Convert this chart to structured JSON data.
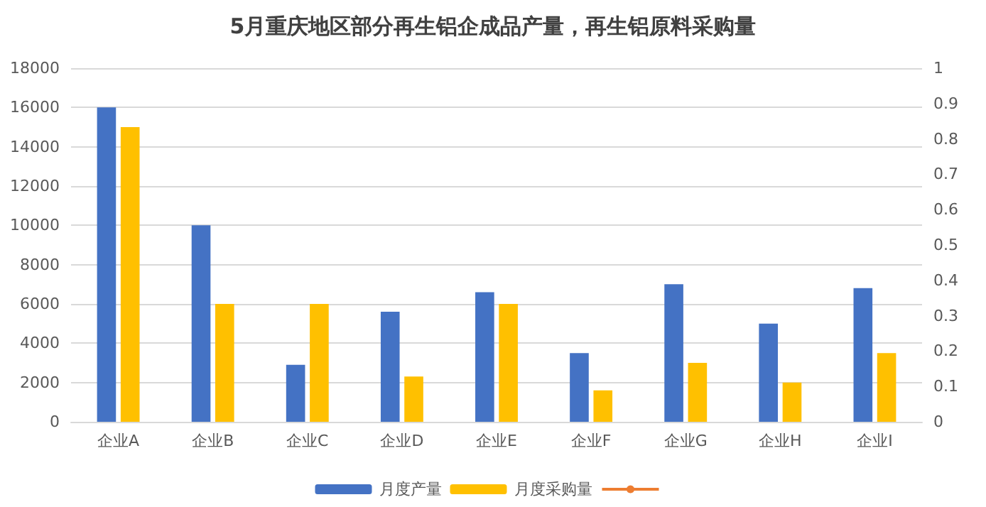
{
  "chart_data": {
    "type": "bar",
    "title": "5月重庆地区部分再生铝企成品产量，再生铝原料采购量",
    "categories": [
      "企业A",
      "企业B",
      "企业C",
      "企业D",
      "企业E",
      "企业F",
      "企业G",
      "企业H",
      "企业I"
    ],
    "series": [
      {
        "name": "月度产量",
        "color": "#4472c4",
        "values": [
          16000,
          10000,
          2900,
          5600,
          6600,
          3500,
          7000,
          5000,
          6800
        ]
      },
      {
        "name": "月度采购量",
        "color": "#ffc000",
        "values": [
          15000,
          6000,
          6000,
          2300,
          6000,
          1600,
          3000,
          2000,
          3500
        ]
      },
      {
        "type": "line",
        "axis": "y2",
        "color": "#ed7d31",
        "values": [
          null,
          null,
          null,
          null,
          null,
          null,
          null,
          null,
          null
        ]
      }
    ],
    "ylim": [
      0,
      18000
    ],
    "yticks": [
      0,
      2000,
      4000,
      6000,
      8000,
      10000,
      12000,
      14000,
      16000,
      18000
    ],
    "y2lim": [
      0,
      1
    ],
    "y2ticks": [
      0,
      0.1,
      0.2,
      0.3,
      0.4,
      0.5,
      0.6,
      0.7,
      0.8,
      0.9,
      1
    ],
    "grid": "y",
    "legend": "bottom"
  }
}
